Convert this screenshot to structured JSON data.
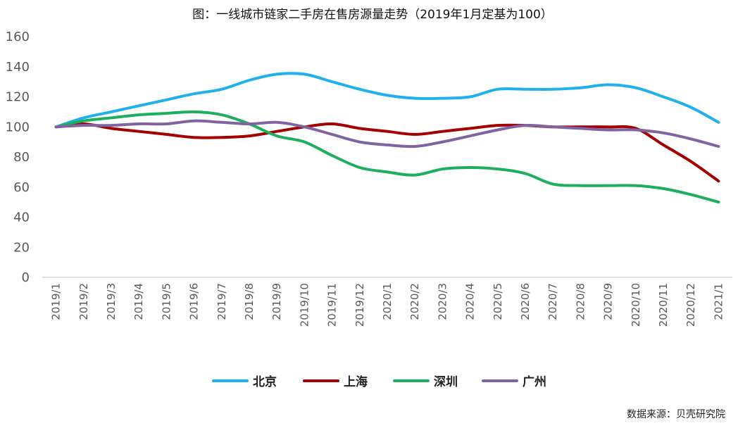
{
  "chart_data": {
    "type": "line",
    "title": "图：一线城市链家二手房在售房源量走势（2019年1月定基为100）",
    "source": "数据来源：贝壳研究院",
    "ylim": [
      0,
      160
    ],
    "yticks": [
      0,
      20,
      40,
      60,
      80,
      100,
      120,
      140,
      160
    ],
    "grid": false,
    "legend": "bottom",
    "categories": [
      "2019/1",
      "2019/2",
      "2019/3",
      "2019/4",
      "2019/5",
      "2019/6",
      "2019/7",
      "2019/8",
      "2019/9",
      "2019/10",
      "2019/11",
      "2019/12",
      "2020/1",
      "2020/2",
      "2020/3",
      "2020/4",
      "2020/5",
      "2020/6",
      "2020/7",
      "2020/8",
      "2020/9",
      "2020/10",
      "2020/11",
      "2020/12",
      "2021/1"
    ],
    "series": [
      {
        "name": "北京",
        "color": "#1FB0EE",
        "values": [
          100,
          106,
          110,
          114,
          118,
          122,
          125,
          131,
          135,
          135,
          130,
          125,
          121,
          119,
          119,
          120,
          125,
          125,
          125,
          126,
          128,
          126,
          120,
          113,
          103
        ]
      },
      {
        "name": "上海",
        "color": "#A40000",
        "values": [
          100,
          102,
          99,
          97,
          95,
          93,
          93,
          94,
          97,
          100,
          102,
          99,
          97,
          95,
          97,
          99,
          101,
          101,
          100,
          100,
          100,
          99,
          88,
          77,
          64
        ]
      },
      {
        "name": "深圳",
        "color": "#1DAE5E",
        "values": [
          100,
          104,
          106,
          108,
          109,
          110,
          108,
          102,
          94,
          90,
          81,
          73,
          70,
          68,
          72,
          73,
          72,
          69,
          62,
          61,
          61,
          61,
          59,
          55,
          50
        ]
      },
      {
        "name": "广州",
        "color": "#8064A2",
        "values": [
          100,
          101,
          101,
          102,
          102,
          104,
          103,
          102,
          103,
          100,
          95,
          90,
          88,
          87,
          90,
          94,
          98,
          101,
          100,
          99,
          98,
          98,
          96,
          92,
          87
        ]
      }
    ]
  }
}
